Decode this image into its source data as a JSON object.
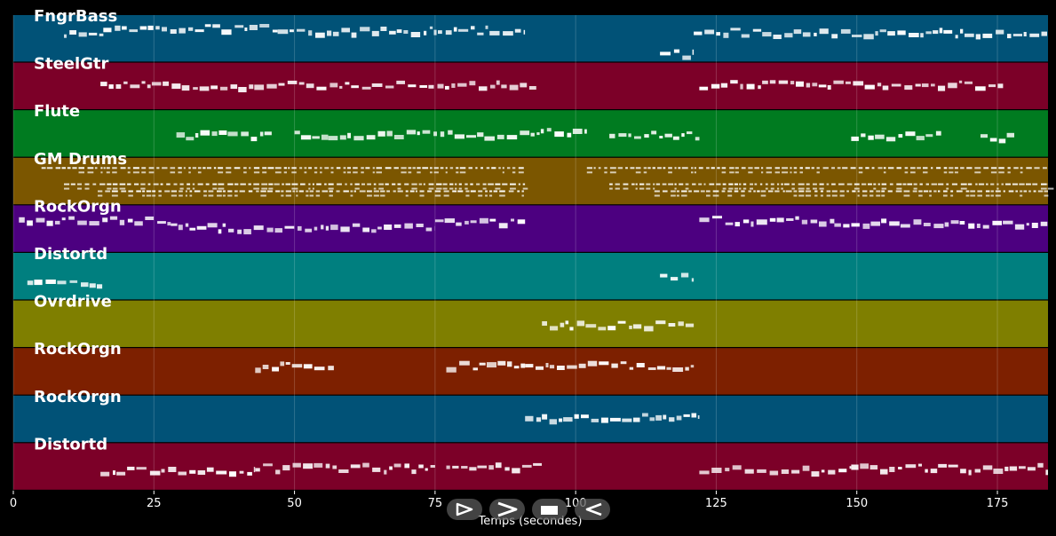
{
  "chart_data": {
    "type": "piano-roll",
    "xlabel": "Temps (secondes)",
    "xlim": [
      0,
      184
    ],
    "xticks": [
      0,
      25,
      50,
      75,
      100,
      125,
      150,
      175
    ],
    "tracks": [
      {
        "name": "FngrBass",
        "color": "#015277",
        "segments": [
          [
            9,
            16,
            0.35
          ],
          [
            16,
            47,
            0.25
          ],
          [
            47,
            91,
            0.3
          ],
          [
            115,
            121,
            0.8
          ],
          [
            121,
            184,
            0.35
          ]
        ]
      },
      {
        "name": "SteelGtr",
        "color": "#7c0028",
        "segments": [
          [
            15.5,
            93,
            0.45
          ],
          [
            122,
            176,
            0.45
          ]
        ]
      },
      {
        "name": "Flute",
        "color": "#007b20",
        "segments": [
          [
            29,
            46,
            0.5
          ],
          [
            50,
            56,
            0.5
          ],
          [
            56,
            92,
            0.5
          ],
          [
            92,
            102,
            0.45
          ],
          [
            106,
            122,
            0.5
          ],
          [
            149,
            165,
            0.5
          ],
          [
            172,
            178,
            0.55
          ]
        ]
      },
      {
        "name": "GM Drums",
        "color": "#7b5600",
        "segments": [
          [
            5,
            91,
            0.2
          ],
          [
            9,
            91,
            0.55
          ],
          [
            15,
            91,
            0.7
          ],
          [
            102,
            184,
            0.2
          ],
          [
            106,
            184,
            0.55
          ],
          [
            114,
            184,
            0.7
          ]
        ]
      },
      {
        "name": "RockOrgn",
        "color": "#4c0080",
        "segments": [
          [
            1,
            28,
            0.3
          ],
          [
            28,
            75,
            0.45
          ],
          [
            75,
            91,
            0.35
          ],
          [
            122,
            146,
            0.3
          ],
          [
            146,
            184,
            0.35
          ]
        ]
      },
      {
        "name": "Distortd",
        "color": "#007f7f",
        "segments": [
          [
            2.5,
            16,
            0.6
          ],
          [
            115,
            121,
            0.48
          ]
        ]
      },
      {
        "name": "Ovrdrive",
        "color": "#7f7f00",
        "segments": [
          [
            94,
            121,
            0.5
          ]
        ]
      },
      {
        "name": "RockOrgn",
        "color": "#7d2000",
        "segments": [
          [
            43,
            57,
            0.35
          ],
          [
            77,
            91,
            0.35
          ],
          [
            91,
            121,
            0.35
          ]
        ]
      },
      {
        "name": "RockOrgn",
        "color": "#015277",
        "segments": [
          [
            91,
            122,
            0.45
          ]
        ]
      },
      {
        "name": "Distortd",
        "color": "#7c0028",
        "segments": [
          [
            15.5,
            43,
            0.55
          ],
          [
            43,
            75,
            0.5
          ],
          [
            77,
            94,
            0.48
          ],
          [
            122,
            149,
            0.55
          ],
          [
            149,
            184,
            0.5
          ]
        ]
      }
    ]
  },
  "controls": {
    "play_icon": "play-outline-icon",
    "next_icon": "chevron-right-icon",
    "stop_icon": "stop-icon",
    "prev_icon": "rewind-icon"
  }
}
